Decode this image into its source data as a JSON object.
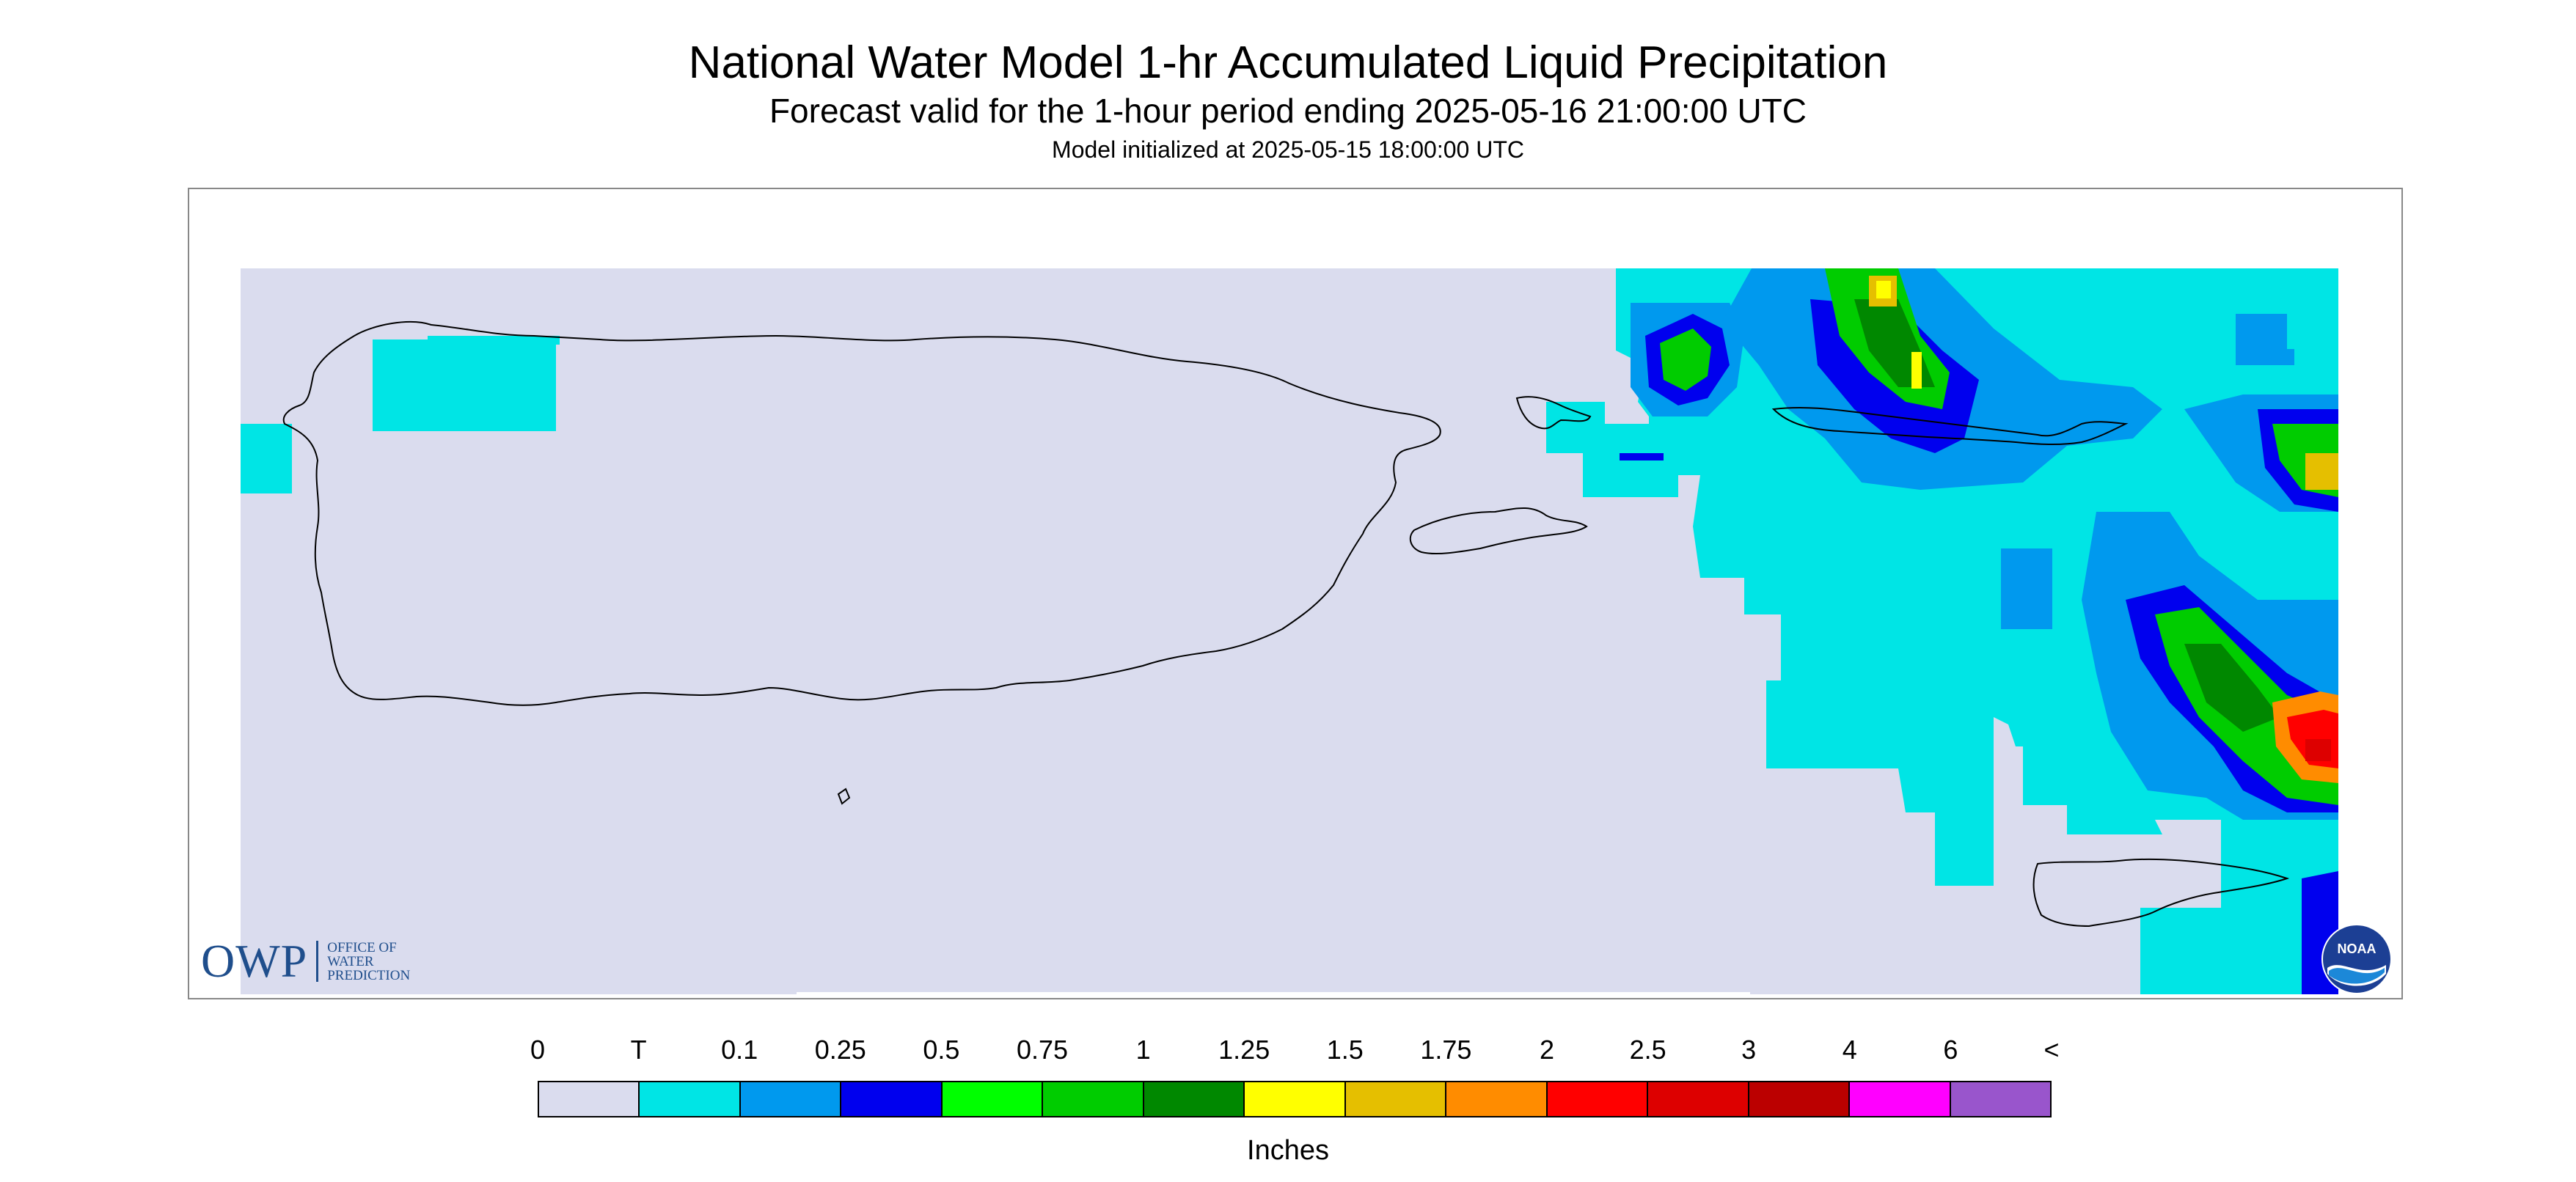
{
  "header": {
    "title": "National Water Model 1-hr Accumulated Liquid Precipitation",
    "subtitle": "Forecast valid for the 1-hour period ending 2025-05-16 21:00:00 UTC",
    "init_line": "Model initialized at 2025-05-15 18:00:00 UTC"
  },
  "map": {
    "region": "Puerto Rico and U.S. Virgin Islands",
    "background_color": "#dadcee",
    "coastline_color": "#000000",
    "logos": {
      "owp_mark": "OWP",
      "owp_line1": "Office of",
      "owp_line2": "Water",
      "owp_line3": "Prediction",
      "noaa_label": "NOAA"
    }
  },
  "legend": {
    "tick_labels": [
      "0",
      "T",
      "0.1",
      "0.25",
      "0.5",
      "0.75",
      "1",
      "1.25",
      "1.5",
      "1.75",
      "2",
      "2.5",
      "3",
      "4",
      "6",
      "<"
    ],
    "colors": [
      "#dadcee",
      "#00e5e5",
      "#0099ee",
      "#0000ee",
      "#00ff00",
      "#00cc00",
      "#008800",
      "#ffff00",
      "#e5bf00",
      "#ff8c00",
      "#ff0000",
      "#dd0000",
      "#bb0000",
      "#ff00ff",
      "#9955cc"
    ],
    "units": "Inches"
  }
}
